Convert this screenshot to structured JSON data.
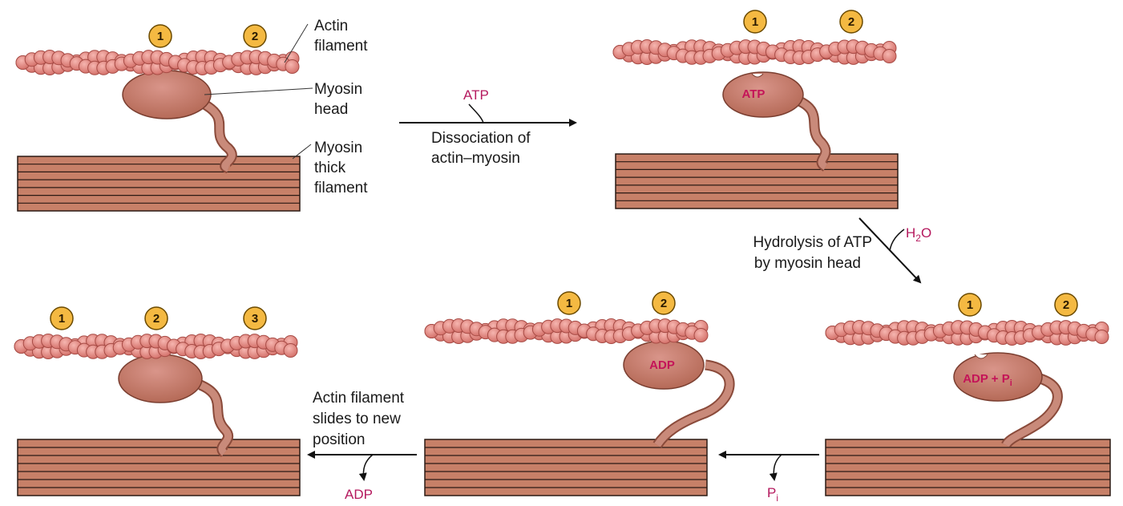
{
  "labels": {
    "actin_line1": "Actin",
    "actin_line2": "filament",
    "myosin_head_line1": "Myosin",
    "myosin_head_line2": "head",
    "thick_line1": "Myosin",
    "thick_line2": "thick",
    "thick_line3": "filament"
  },
  "steps": {
    "dissociation": {
      "reagent": "ATP",
      "line1": "Dissociation of",
      "line2": "actin–myosin"
    },
    "hydrolysis": {
      "reagent_main": "H",
      "reagent_sub": "2",
      "reagent_tail": "O",
      "line1": "Hydrolysis of ATP",
      "line2": "by myosin head"
    },
    "phosphate_release": {
      "product_main": "P",
      "product_sub": "i"
    },
    "sliding": {
      "line1": "Actin filament",
      "line2": "slides to new",
      "line3": "position",
      "product": "ADP"
    }
  },
  "head_labels": {
    "state2": "ATP",
    "state3_main": "ADP + P",
    "state3_sub": "i",
    "state4": "ADP"
  },
  "sites": {
    "state1": [
      "1",
      "2"
    ],
    "state2": [
      "1",
      "2"
    ],
    "state3": [
      "1",
      "2"
    ],
    "state4": [
      "1",
      "2"
    ],
    "state5": [
      "1",
      "2",
      "3"
    ]
  },
  "colors": {
    "actin": "#e8928c",
    "myosin": "#c07a66",
    "thick_filament": "#c78068",
    "badge": "#f4b942",
    "reagent": "#b5195e"
  }
}
